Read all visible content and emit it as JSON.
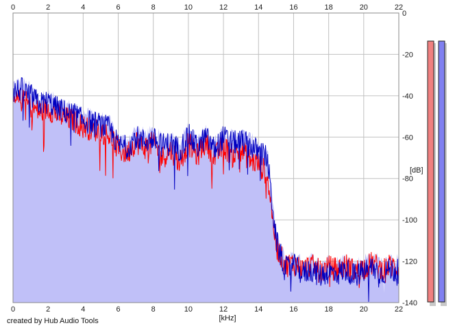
{
  "chart_data": {
    "type": "area",
    "xlabel": "[kHz]",
    "ylabel": "[dB]",
    "xlim": [
      0,
      22
    ],
    "ylim": [
      -140,
      0
    ],
    "x_ticks": [
      0,
      2,
      4,
      6,
      8,
      10,
      12,
      14,
      16,
      18,
      20,
      22
    ],
    "y_ticks": [
      0,
      -20,
      -40,
      -60,
      -80,
      -100,
      -120,
      -140
    ],
    "grid": true,
    "series_colors": {
      "left_channel": "#ff0000",
      "right_channel": "#0000c0",
      "fill": "#c0c0f8"
    },
    "series": [
      {
        "channel": "left",
        "color": "#ff0000",
        "x": [
          0,
          0.5,
          1,
          1.5,
          2,
          2.5,
          3,
          3.5,
          4,
          4.5,
          5,
          5.5,
          6,
          6.5,
          7,
          7.5,
          8,
          8.5,
          9,
          9.5,
          10,
          10.5,
          11,
          11.5,
          12,
          12.5,
          13,
          13.5,
          14,
          14.5,
          15,
          15.5,
          16,
          16.5,
          17,
          17.5,
          18,
          18.5,
          19,
          19.5,
          20,
          20.5,
          21,
          21.5,
          22
        ],
        "values": [
          -44,
          -42,
          -45,
          -48,
          -46,
          -49,
          -51,
          -52,
          -55,
          -56,
          -57,
          -59,
          -66,
          -68,
          -62,
          -65,
          -63,
          -70,
          -66,
          -72,
          -63,
          -69,
          -62,
          -70,
          -64,
          -69,
          -66,
          -71,
          -73,
          -78,
          -112,
          -122,
          -121,
          -124,
          -122,
          -125,
          -123,
          -124,
          -122,
          -125,
          -123,
          -121,
          -124,
          -122,
          -123
        ]
      },
      {
        "channel": "right",
        "color": "#0000c0",
        "x": [
          0,
          0.5,
          1,
          1.5,
          2,
          2.5,
          3,
          3.5,
          4,
          4.5,
          5,
          5.5,
          6,
          6.5,
          7,
          7.5,
          8,
          8.5,
          9,
          9.5,
          10,
          10.5,
          11,
          11.5,
          12,
          12.5,
          13,
          13.5,
          14,
          14.5,
          15,
          15.5,
          16,
          16.5,
          17,
          17.5,
          18,
          18.5,
          19,
          19.5,
          20,
          20.5,
          21,
          21.5,
          22
        ],
        "values": [
          -38,
          -37,
          -40,
          -44,
          -43,
          -46,
          -48,
          -49,
          -52,
          -53,
          -54,
          -56,
          -64,
          -65,
          -60,
          -62,
          -61,
          -64,
          -63,
          -66,
          -59,
          -65,
          -60,
          -66,
          -60,
          -63,
          -62,
          -64,
          -67,
          -70,
          -110,
          -124,
          -122,
          -126,
          -124,
          -127,
          -125,
          -126,
          -124,
          -127,
          -125,
          -123,
          -126,
          -124,
          -125
        ]
      }
    ],
    "level_meters": [
      {
        "channel": "left",
        "color": "#f08080"
      },
      {
        "channel": "right",
        "color": "#8080f0"
      }
    ]
  },
  "credit": "created by Hub Audio Tools"
}
